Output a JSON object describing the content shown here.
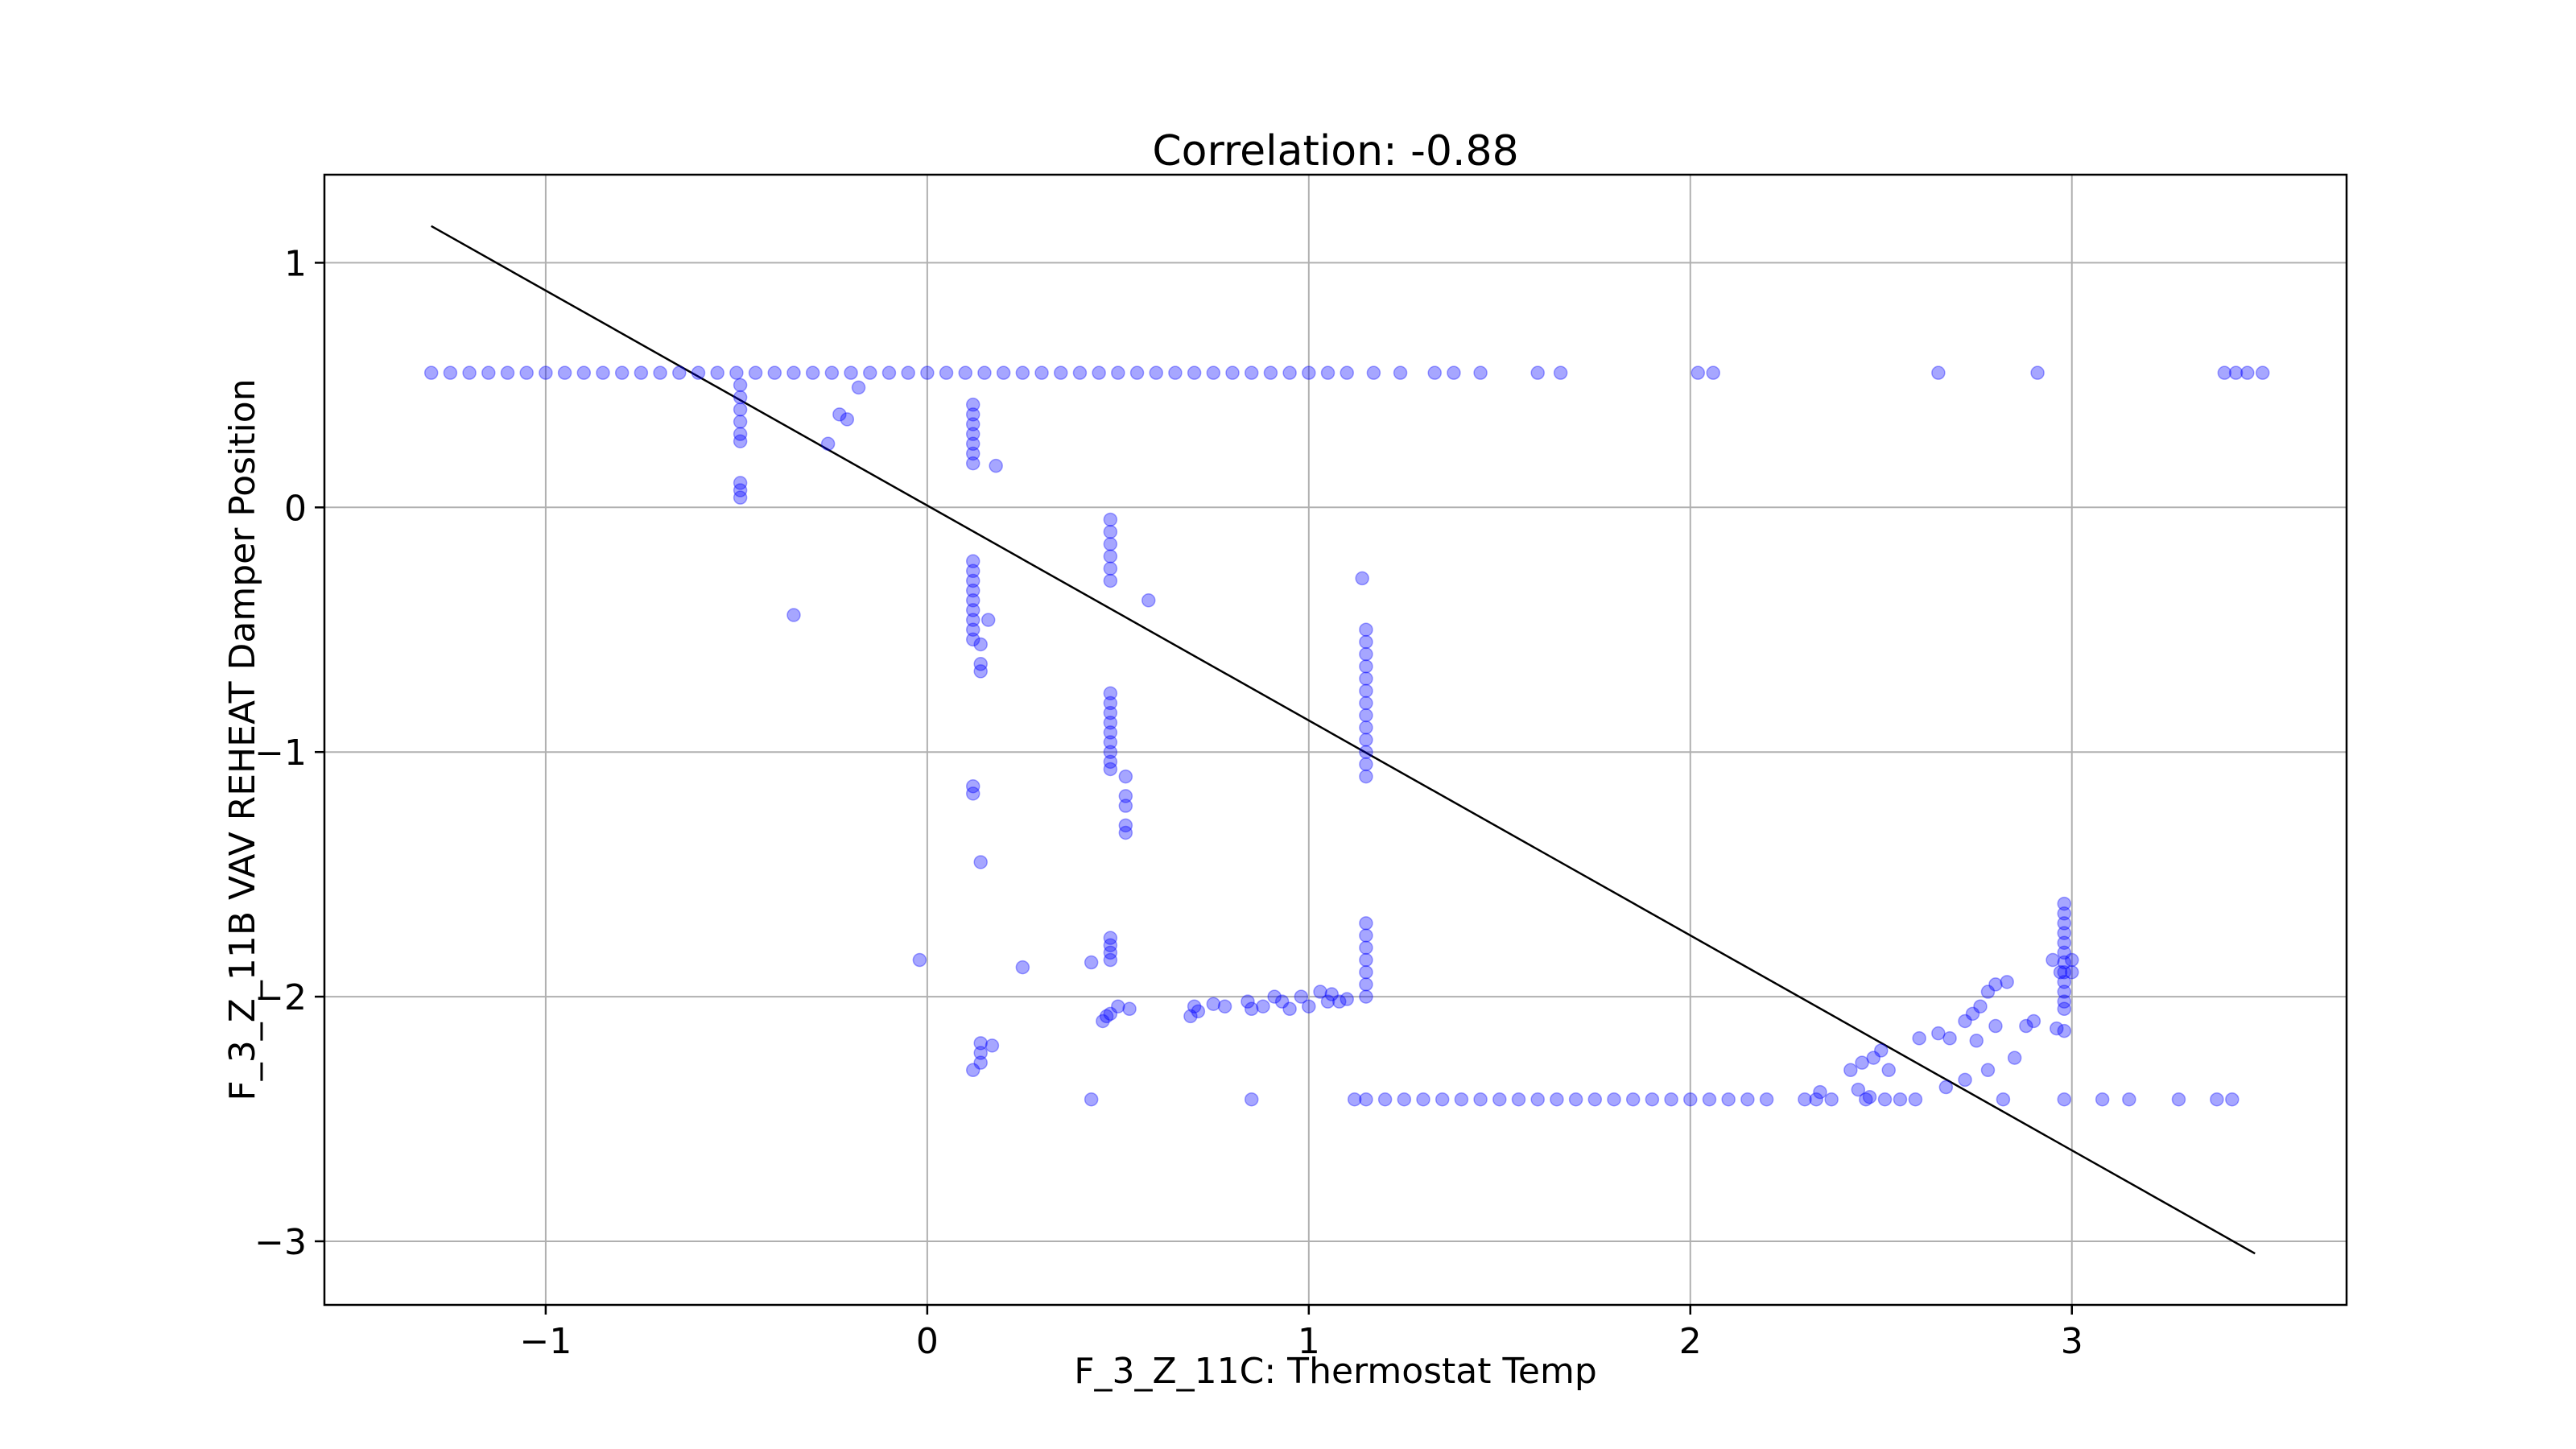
{
  "chart_data": {
    "type": "scatter",
    "title": "Correlation: -0.88",
    "xlabel": "F_3_Z_11C: Thermostat Temp",
    "ylabel": "F_3_Z_11B VAV REHEAT Damper Position",
    "xlim": [
      -1.58,
      3.72
    ],
    "ylim": [
      -3.26,
      1.36
    ],
    "xticks": [
      -1,
      0,
      1,
      2,
      3
    ],
    "xtick_labels": [
      "−1",
      "0",
      "1",
      "2",
      "3"
    ],
    "yticks": [
      1,
      0,
      -1,
      -2,
      -3
    ],
    "ytick_labels": [
      "1",
      "0",
      "−1",
      "−2",
      "−3"
    ],
    "grid": true,
    "point_color": "#0000ff",
    "point_alpha": 0.35,
    "line_color": "#000000",
    "fit_line": {
      "x": [
        -1.3,
        3.48
      ],
      "y": [
        1.15,
        -3.05
      ]
    },
    "series": [
      {
        "points": [
          [
            -1.3,
            0.55
          ],
          [
            -1.25,
            0.55
          ],
          [
            -1.2,
            0.55
          ],
          [
            -1.15,
            0.55
          ],
          [
            -1.1,
            0.55
          ],
          [
            -1.05,
            0.55
          ],
          [
            -1.0,
            0.55
          ],
          [
            -0.95,
            0.55
          ],
          [
            -0.9,
            0.55
          ],
          [
            -0.85,
            0.55
          ],
          [
            -0.8,
            0.55
          ],
          [
            -0.75,
            0.55
          ],
          [
            -0.7,
            0.55
          ],
          [
            -0.65,
            0.55
          ],
          [
            -0.6,
            0.55
          ],
          [
            -0.55,
            0.55
          ],
          [
            -0.5,
            0.55
          ],
          [
            -0.45,
            0.55
          ],
          [
            -0.4,
            0.55
          ],
          [
            -0.35,
            0.55
          ],
          [
            -0.3,
            0.55
          ],
          [
            -0.25,
            0.55
          ],
          [
            -0.2,
            0.55
          ],
          [
            -0.15,
            0.55
          ],
          [
            -0.1,
            0.55
          ],
          [
            -0.05,
            0.55
          ],
          [
            0.0,
            0.55
          ],
          [
            0.05,
            0.55
          ],
          [
            0.1,
            0.55
          ],
          [
            0.15,
            0.55
          ],
          [
            0.2,
            0.55
          ],
          [
            0.25,
            0.55
          ],
          [
            0.3,
            0.55
          ],
          [
            0.35,
            0.55
          ],
          [
            0.4,
            0.55
          ],
          [
            0.45,
            0.55
          ],
          [
            0.5,
            0.55
          ],
          [
            0.55,
            0.55
          ],
          [
            0.6,
            0.55
          ],
          [
            0.65,
            0.55
          ],
          [
            0.7,
            0.55
          ],
          [
            0.75,
            0.55
          ],
          [
            0.8,
            0.55
          ],
          [
            0.85,
            0.55
          ],
          [
            0.9,
            0.55
          ],
          [
            0.95,
            0.55
          ],
          [
            1.0,
            0.55
          ],
          [
            1.05,
            0.55
          ],
          [
            1.1,
            0.55
          ],
          [
            1.17,
            0.55
          ],
          [
            1.24,
            0.55
          ],
          [
            1.33,
            0.55
          ],
          [
            1.38,
            0.55
          ],
          [
            1.45,
            0.55
          ],
          [
            1.6,
            0.55
          ],
          [
            1.66,
            0.55
          ],
          [
            2.02,
            0.55
          ],
          [
            2.06,
            0.55
          ],
          [
            2.65,
            0.55
          ],
          [
            2.91,
            0.55
          ],
          [
            3.4,
            0.55
          ],
          [
            3.43,
            0.55
          ],
          [
            3.46,
            0.55
          ],
          [
            3.5,
            0.55
          ],
          [
            -0.49,
            0.5
          ],
          [
            -0.49,
            0.45
          ],
          [
            -0.49,
            0.4
          ],
          [
            -0.49,
            0.35
          ],
          [
            -0.49,
            0.3
          ],
          [
            -0.49,
            0.27
          ],
          [
            -0.49,
            0.1
          ],
          [
            -0.49,
            0.07
          ],
          [
            -0.49,
            0.04
          ],
          [
            -0.23,
            0.38
          ],
          [
            -0.21,
            0.36
          ],
          [
            -0.26,
            0.26
          ],
          [
            -0.18,
            0.49
          ],
          [
            -0.35,
            -0.44
          ],
          [
            -0.02,
            -1.85
          ],
          [
            0.12,
            0.42
          ],
          [
            0.12,
            0.38
          ],
          [
            0.12,
            0.34
          ],
          [
            0.12,
            0.3
          ],
          [
            0.12,
            0.26
          ],
          [
            0.12,
            0.22
          ],
          [
            0.12,
            0.18
          ],
          [
            0.18,
            0.17
          ],
          [
            0.12,
            -0.22
          ],
          [
            0.12,
            -0.26
          ],
          [
            0.12,
            -0.3
          ],
          [
            0.12,
            -0.34
          ],
          [
            0.12,
            -0.38
          ],
          [
            0.12,
            -0.42
          ],
          [
            0.12,
            -0.46
          ],
          [
            0.12,
            -0.5
          ],
          [
            0.12,
            -0.54
          ],
          [
            0.14,
            -0.56
          ],
          [
            0.14,
            -0.64
          ],
          [
            0.14,
            -0.67
          ],
          [
            0.16,
            -0.46
          ],
          [
            0.12,
            -1.14
          ],
          [
            0.12,
            -1.17
          ],
          [
            0.14,
            -1.45
          ],
          [
            0.14,
            -2.19
          ],
          [
            0.14,
            -2.23
          ],
          [
            0.17,
            -2.2
          ],
          [
            0.12,
            -2.3
          ],
          [
            0.14,
            -2.27
          ],
          [
            0.25,
            -1.88
          ],
          [
            0.48,
            -0.05
          ],
          [
            0.48,
            -0.1
          ],
          [
            0.48,
            -0.15
          ],
          [
            0.48,
            -0.2
          ],
          [
            0.48,
            -0.25
          ],
          [
            0.48,
            -0.3
          ],
          [
            0.58,
            -0.38
          ],
          [
            0.48,
            -0.76
          ],
          [
            0.48,
            -0.8
          ],
          [
            0.48,
            -0.84
          ],
          [
            0.48,
            -0.88
          ],
          [
            0.48,
            -0.92
          ],
          [
            0.48,
            -0.96
          ],
          [
            0.48,
            -1.0
          ],
          [
            0.48,
            -1.04
          ],
          [
            0.48,
            -1.07
          ],
          [
            0.52,
            -1.1
          ],
          [
            0.52,
            -1.18
          ],
          [
            0.52,
            -1.22
          ],
          [
            0.52,
            -1.3
          ],
          [
            0.52,
            -1.33
          ],
          [
            0.48,
            -1.76
          ],
          [
            0.48,
            -1.79
          ],
          [
            0.48,
            -1.82
          ],
          [
            0.48,
            -1.85
          ],
          [
            0.43,
            -1.86
          ],
          [
            0.43,
            -2.42
          ],
          [
            0.46,
            -2.1
          ],
          [
            0.48,
            -2.07
          ],
          [
            0.5,
            -2.04
          ],
          [
            0.53,
            -2.05
          ],
          [
            0.47,
            -2.08
          ],
          [
            0.69,
            -2.08
          ],
          [
            0.7,
            -2.04
          ],
          [
            0.71,
            -2.06
          ],
          [
            0.75,
            -2.03
          ],
          [
            0.78,
            -2.04
          ],
          [
            0.84,
            -2.02
          ],
          [
            0.85,
            -2.05
          ],
          [
            0.88,
            -2.04
          ],
          [
            0.91,
            -2.0
          ],
          [
            0.93,
            -2.02
          ],
          [
            0.95,
            -2.05
          ],
          [
            0.98,
            -2.0
          ],
          [
            1.0,
            -2.04
          ],
          [
            1.03,
            -1.98
          ],
          [
            1.05,
            -2.02
          ],
          [
            1.06,
            -1.99
          ],
          [
            1.08,
            -2.02
          ],
          [
            1.1,
            -2.01
          ],
          [
            0.85,
            -2.42
          ],
          [
            1.14,
            -0.29
          ],
          [
            1.15,
            -0.5
          ],
          [
            1.15,
            -0.55
          ],
          [
            1.15,
            -0.6
          ],
          [
            1.15,
            -0.65
          ],
          [
            1.15,
            -0.7
          ],
          [
            1.15,
            -0.75
          ],
          [
            1.15,
            -0.8
          ],
          [
            1.15,
            -0.85
          ],
          [
            1.15,
            -0.9
          ],
          [
            1.15,
            -0.95
          ],
          [
            1.15,
            -1.0
          ],
          [
            1.15,
            -1.05
          ],
          [
            1.15,
            -1.1
          ],
          [
            1.15,
            -1.7
          ],
          [
            1.15,
            -1.75
          ],
          [
            1.15,
            -1.8
          ],
          [
            1.15,
            -1.85
          ],
          [
            1.15,
            -1.9
          ],
          [
            1.15,
            -1.95
          ],
          [
            1.15,
            -2.0
          ],
          [
            1.12,
            -2.42
          ],
          [
            1.15,
            -2.42
          ],
          [
            1.2,
            -2.42
          ],
          [
            1.25,
            -2.42
          ],
          [
            1.3,
            -2.42
          ],
          [
            1.35,
            -2.42
          ],
          [
            1.4,
            -2.42
          ],
          [
            1.45,
            -2.42
          ],
          [
            1.5,
            -2.42
          ],
          [
            1.55,
            -2.42
          ],
          [
            1.6,
            -2.42
          ],
          [
            1.65,
            -2.42
          ],
          [
            1.7,
            -2.42
          ],
          [
            1.75,
            -2.42
          ],
          [
            1.8,
            -2.42
          ],
          [
            1.85,
            -2.42
          ],
          [
            1.9,
            -2.42
          ],
          [
            1.95,
            -2.42
          ],
          [
            2.0,
            -2.42
          ],
          [
            2.05,
            -2.42
          ],
          [
            2.1,
            -2.42
          ],
          [
            2.15,
            -2.42
          ],
          [
            2.2,
            -2.42
          ],
          [
            2.3,
            -2.42
          ],
          [
            2.33,
            -2.42
          ],
          [
            2.37,
            -2.42
          ],
          [
            2.46,
            -2.42
          ],
          [
            2.51,
            -2.42
          ],
          [
            2.55,
            -2.42
          ],
          [
            2.59,
            -2.42
          ],
          [
            2.82,
            -2.42
          ],
          [
            2.98,
            -2.42
          ],
          [
            3.08,
            -2.42
          ],
          [
            3.15,
            -2.42
          ],
          [
            3.28,
            -2.42
          ],
          [
            3.38,
            -2.42
          ],
          [
            3.42,
            -2.42
          ],
          [
            2.34,
            -2.39
          ],
          [
            2.44,
            -2.38
          ],
          [
            2.47,
            -2.41
          ],
          [
            2.42,
            -2.3
          ],
          [
            2.45,
            -2.27
          ],
          [
            2.48,
            -2.25
          ],
          [
            2.5,
            -2.22
          ],
          [
            2.52,
            -2.3
          ],
          [
            2.6,
            -2.17
          ],
          [
            2.65,
            -2.15
          ],
          [
            2.67,
            -2.37
          ],
          [
            2.68,
            -2.17
          ],
          [
            2.72,
            -2.34
          ],
          [
            2.75,
            -2.18
          ],
          [
            2.78,
            -2.3
          ],
          [
            2.8,
            -2.12
          ],
          [
            2.85,
            -2.25
          ],
          [
            2.88,
            -2.12
          ],
          [
            2.9,
            -2.1
          ],
          [
            2.72,
            -2.1
          ],
          [
            2.74,
            -2.07
          ],
          [
            2.76,
            -2.04
          ],
          [
            2.78,
            -1.98
          ],
          [
            2.8,
            -1.95
          ],
          [
            2.83,
            -1.94
          ],
          [
            2.95,
            -1.85
          ],
          [
            2.97,
            -1.9
          ],
          [
            2.96,
            -2.13
          ],
          [
            2.98,
            -1.62
          ],
          [
            2.98,
            -1.66
          ],
          [
            2.98,
            -1.7
          ],
          [
            2.98,
            -1.74
          ],
          [
            2.98,
            -1.78
          ],
          [
            2.98,
            -1.82
          ],
          [
            2.98,
            -1.86
          ],
          [
            2.98,
            -1.9
          ],
          [
            2.98,
            -1.94
          ],
          [
            2.98,
            -1.98
          ],
          [
            2.98,
            -2.02
          ],
          [
            2.98,
            -2.05
          ],
          [
            3.0,
            -1.85
          ],
          [
            3.0,
            -1.9
          ],
          [
            2.98,
            -2.14
          ]
        ]
      }
    ]
  }
}
